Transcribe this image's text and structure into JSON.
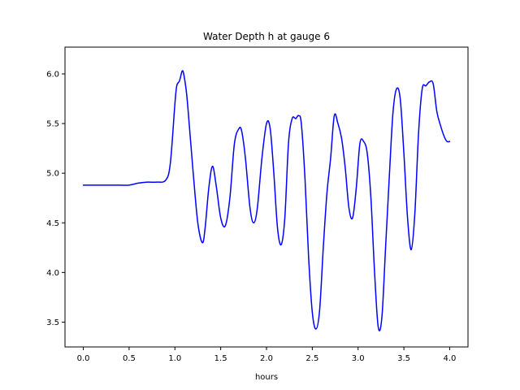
{
  "chart_data": {
    "type": "line",
    "title": "Water Depth h at gauge 6",
    "xlabel": "hours",
    "ylabel": "",
    "xlim": [
      -0.2,
      4.2
    ],
    "ylim": [
      3.25,
      6.27
    ],
    "x_ticks": [
      0.0,
      0.5,
      1.0,
      1.5,
      2.0,
      2.5,
      3.0,
      3.5,
      4.0
    ],
    "x_tick_labels": [
      "0.0",
      "0.5",
      "1.0",
      "1.5",
      "2.0",
      "2.5",
      "3.0",
      "3.5",
      "4.0"
    ],
    "y_ticks": [
      3.5,
      4.0,
      4.5,
      5.0,
      5.5,
      6.0
    ],
    "y_tick_labels": [
      "3.5",
      "4.0",
      "4.5",
      "5.0",
      "5.5",
      "6.0"
    ],
    "grid": false,
    "series": [
      {
        "color": "#0000ff",
        "x": [
          0.0,
          0.2,
          0.4,
          0.5,
          0.6,
          0.7,
          0.8,
          0.9,
          0.95,
          1.0,
          1.02,
          1.05,
          1.08,
          1.1,
          1.13,
          1.16,
          1.2,
          1.25,
          1.3,
          1.33,
          1.37,
          1.41,
          1.45,
          1.5,
          1.55,
          1.6,
          1.65,
          1.7,
          1.73,
          1.77,
          1.82,
          1.86,
          1.9,
          1.95,
          2.0,
          2.04,
          2.08,
          2.12,
          2.16,
          2.2,
          2.24,
          2.28,
          2.32,
          2.35,
          2.38,
          2.42,
          2.46,
          2.5,
          2.54,
          2.58,
          2.62,
          2.66,
          2.7,
          2.74,
          2.78,
          2.82,
          2.86,
          2.9,
          2.94,
          2.98,
          3.02,
          3.06,
          3.1,
          3.14,
          3.18,
          3.22,
          3.26,
          3.3,
          3.34,
          3.38,
          3.42,
          3.46,
          3.5,
          3.54,
          3.58,
          3.62,
          3.66,
          3.7,
          3.74,
          3.78,
          3.82,
          3.86,
          3.9,
          3.94,
          3.97,
          4.0
        ],
        "y": [
          4.88,
          4.88,
          4.88,
          4.88,
          4.9,
          4.91,
          4.91,
          4.93,
          5.1,
          5.7,
          5.88,
          5.93,
          6.03,
          5.98,
          5.78,
          5.45,
          5.0,
          4.5,
          4.3,
          4.45,
          4.85,
          5.07,
          4.88,
          4.55,
          4.47,
          4.75,
          5.3,
          5.45,
          5.42,
          5.15,
          4.65,
          4.5,
          4.65,
          5.15,
          5.5,
          5.45,
          5.0,
          4.45,
          4.28,
          4.55,
          5.3,
          5.55,
          5.55,
          5.58,
          5.5,
          4.95,
          4.15,
          3.6,
          3.43,
          3.62,
          4.25,
          4.8,
          5.15,
          5.58,
          5.5,
          5.35,
          5.05,
          4.65,
          4.55,
          4.85,
          5.3,
          5.32,
          5.2,
          4.75,
          4.0,
          3.45,
          3.55,
          4.25,
          4.95,
          5.6,
          5.85,
          5.75,
          5.2,
          4.55,
          4.23,
          4.6,
          5.4,
          5.85,
          5.88,
          5.92,
          5.9,
          5.62,
          5.48,
          5.37,
          5.32,
          5.32
        ]
      }
    ]
  }
}
